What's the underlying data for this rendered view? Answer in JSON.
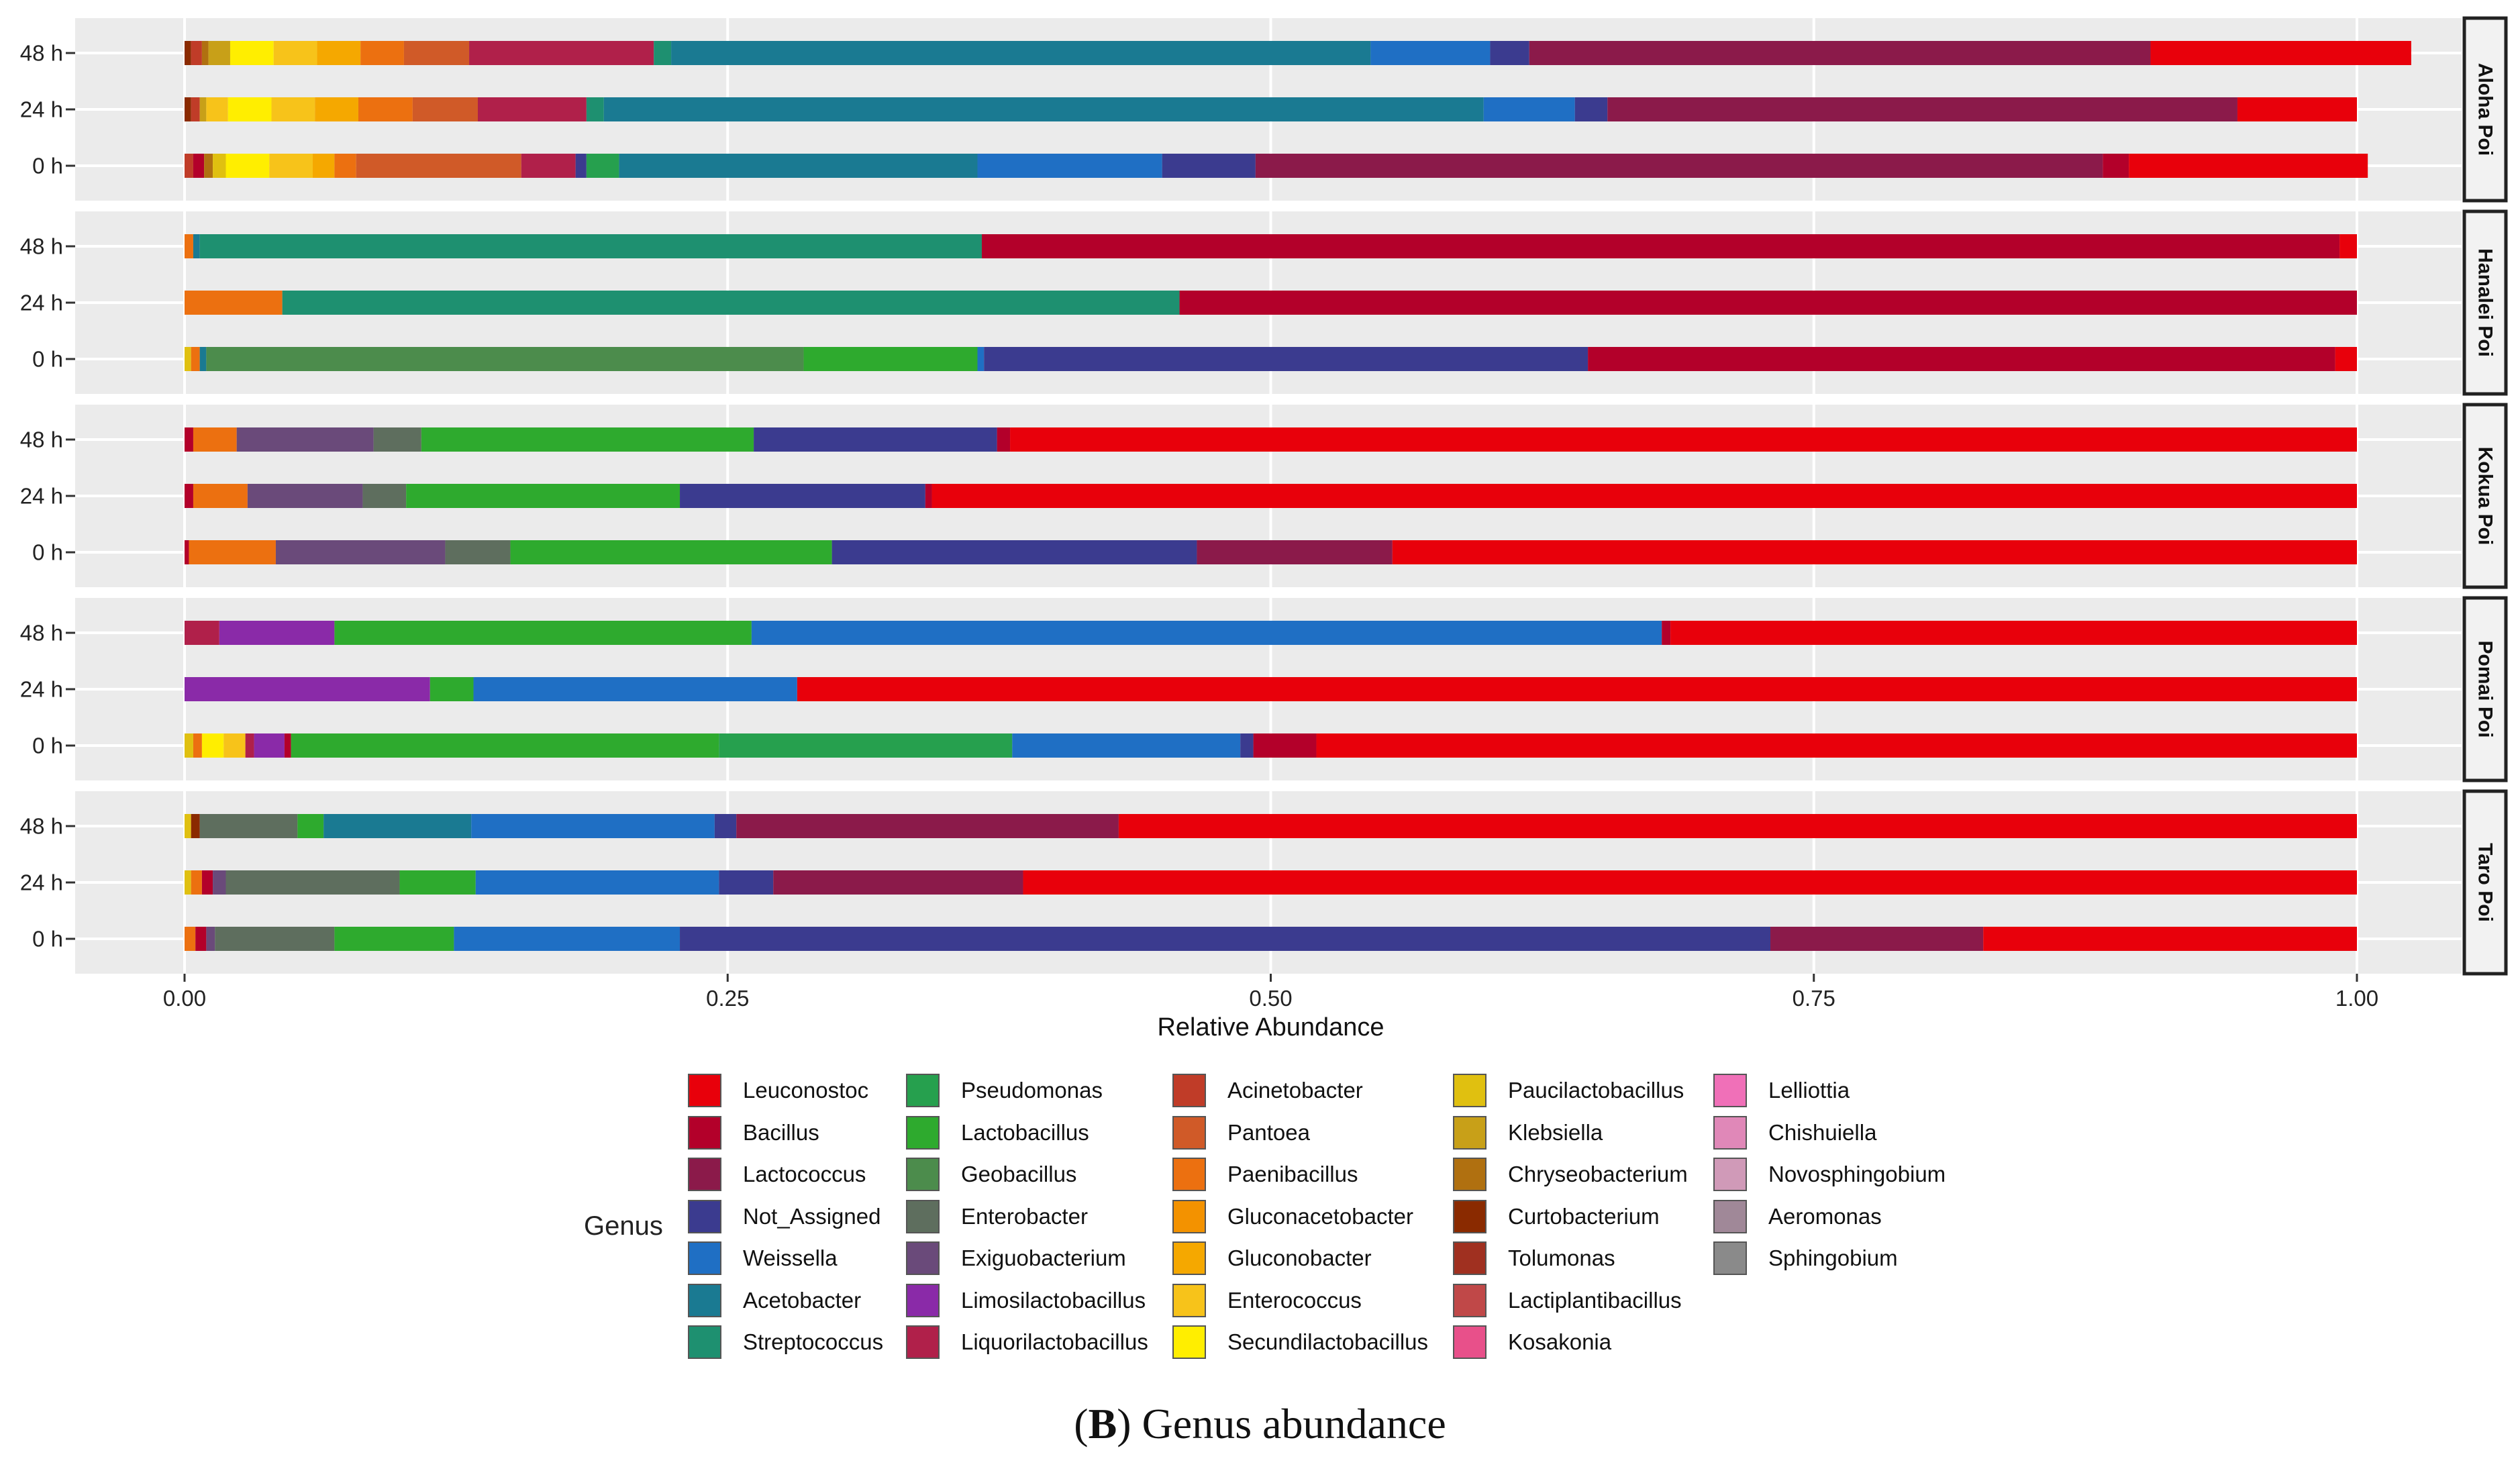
{
  "chart_data": {
    "type": "bar",
    "orientation": "horizontal",
    "stacked": true,
    "caption_label": "B",
    "caption_text": ") Genus abundance",
    "caption_open": "(",
    "xlabel": "Relative Abundance",
    "xlim": [
      0,
      1
    ],
    "xticks": [
      "0.00",
      "0.25",
      "0.50",
      "0.75",
      "1.00"
    ],
    "xtick_values": [
      0,
      0.25,
      0.5,
      0.75,
      1
    ],
    "legend_title": "Genus",
    "genus_colors": {
      "Leuconostoc": "#e8000b",
      "Bacillus": "#b3002a",
      "Lactococcus": "#8b1a4a",
      "Not_Assigned": "#3b3b8f",
      "Weissella": "#1f6fc4",
      "Acetobacter": "#1a7a92",
      "Streptococcus": "#1e9070",
      "Pseudomonas": "#26a04e",
      "Lactobacillus": "#2eaa2e",
      "Geobacillus": "#4c8c4c",
      "Enterobacter": "#5e6e5e",
      "Exiguobacterium": "#6a4a7a",
      "Limosilactobacillus": "#8a2aa8",
      "Liquorilactobacillus": "#b0204a",
      "Acinetobacter": "#c03c28",
      "Pantoea": "#d05a28",
      "Paenibacillus": "#ec7010",
      "Gluconacetobacter": "#f39200",
      "Gluconobacter": "#f5a800",
      "Enterococcus": "#f7c31a",
      "Secundilactobacillus": "#ffee00",
      "Paucilactobacillus": "#e0c010",
      "Klebsiella": "#c8a018",
      "Chryseobacterium": "#b07010",
      "Curtobacterium": "#8a2a00",
      "Tolumonas": "#a03020",
      "Lactiplantibacillus": "#c04848",
      "Kosakonia": "#e8508a",
      "Lelliottia": "#f070b8",
      "Chishuiella": "#e088b8",
      "Novosphingobium": "#d09ab8",
      "Aeromonas": "#a08898",
      "Sphingobium": "#8a8a8a"
    },
    "legend_columns": [
      [
        "Leuconostoc",
        "Bacillus",
        "Lactococcus",
        "Not_Assigned",
        "Weissella",
        "Acetobacter",
        "Streptococcus"
      ],
      [
        "Pseudomonas",
        "Lactobacillus",
        "Geobacillus",
        "Enterobacter",
        "Exiguobacterium",
        "Limosilactobacillus",
        "Liquorilactobacillus"
      ],
      [
        "Acinetobacter",
        "Pantoea",
        "Paenibacillus",
        "Gluconacetobacter",
        "Gluconobacter",
        "Enterococcus",
        "Secundilactobacillus"
      ],
      [
        "Paucilactobacillus",
        "Klebsiella",
        "Chryseobacterium",
        "Curtobacterium",
        "Tolumonas",
        "Lactiplantibacillus",
        "Kosakonia"
      ],
      [
        "Lelliottia",
        "Chishuiella",
        "Novosphingobium",
        "Aeromonas",
        "Sphingobium"
      ]
    ],
    "facets": [
      {
        "name": "Aloha Poi",
        "bars": [
          {
            "label": "48 h",
            "segments": [
              [
                "Curtobacterium",
                0.003
              ],
              [
                "Acinetobacter",
                0.005
              ],
              [
                "Chryseobacterium",
                0.003
              ],
              [
                "Klebsiella",
                0.01
              ],
              [
                "Secundilactobacillus",
                0.02
              ],
              [
                "Enterococcus",
                0.02
              ],
              [
                "Gluconobacter",
                0.02
              ],
              [
                "Paenibacillus",
                0.02
              ],
              [
                "Pantoea",
                0.03
              ],
              [
                "Liquorilactobacillus",
                0.085
              ],
              [
                "Streptococcus",
                0.008
              ],
              [
                "Acetobacter",
                0.322
              ],
              [
                "Weissella",
                0.055
              ],
              [
                "Not_Assigned",
                0.018
              ],
              [
                "Lactococcus",
                0.286
              ],
              [
                "Leuconostoc",
                0.12
              ]
            ]
          },
          {
            "label": "24 h",
            "segments": [
              [
                "Curtobacterium",
                0.003
              ],
              [
                "Acinetobacter",
                0.004
              ],
              [
                "Klebsiella",
                0.003
              ],
              [
                "Enterococcus",
                0.01
              ],
              [
                "Secundilactobacillus",
                0.02
              ],
              [
                "Enterococcus",
                0.02
              ],
              [
                "Gluconobacter",
                0.02
              ],
              [
                "Paenibacillus",
                0.025
              ],
              [
                "Pantoea",
                0.03
              ],
              [
                "Liquorilactobacillus",
                0.05
              ],
              [
                "Streptococcus",
                0.008
              ],
              [
                "Acetobacter",
                0.405
              ],
              [
                "Weissella",
                0.042
              ],
              [
                "Not_Assigned",
                0.015
              ],
              [
                "Lactococcus",
                0.29
              ],
              [
                "Leuconostoc",
                0.055
              ]
            ]
          },
          {
            "label": "0 h",
            "segments": [
              [
                "Acinetobacter",
                0.004
              ],
              [
                "Bacillus",
                0.005
              ],
              [
                "Chryseobacterium",
                0.004
              ],
              [
                "Paucilactobacillus",
                0.006
              ],
              [
                "Secundilactobacillus",
                0.02
              ],
              [
                "Enterococcus",
                0.02
              ],
              [
                "Gluconobacter",
                0.01
              ],
              [
                "Paenibacillus",
                0.01
              ],
              [
                "Pantoea",
                0.076
              ],
              [
                "Liquorilactobacillus",
                0.025
              ],
              [
                "Not_Assigned",
                0.005
              ],
              [
                "Pseudomonas",
                0.015
              ],
              [
                "Acetobacter",
                0.165
              ],
              [
                "Weissella",
                0.085
              ],
              [
                "Not_Assigned",
                0.043
              ],
              [
                "Lactococcus",
                0.39
              ],
              [
                "Bacillus",
                0.012
              ],
              [
                "Leuconostoc",
                0.11
              ]
            ]
          }
        ]
      },
      {
        "name": "Hanalei Poi",
        "bars": [
          {
            "label": "48 h",
            "segments": [
              [
                "Paenibacillus",
                0.004
              ],
              [
                "Acetobacter",
                0.003
              ],
              [
                "Streptococcus",
                0.36
              ],
              [
                "Bacillus",
                0.625
              ],
              [
                "Leuconostoc",
                0.008
              ]
            ]
          },
          {
            "label": "24 h",
            "segments": [
              [
                "Paenibacillus",
                0.045
              ],
              [
                "Streptococcus",
                0.413
              ],
              [
                "Bacillus",
                0.542
              ]
            ]
          },
          {
            "label": "0 h",
            "segments": [
              [
                "Paucilactobacillus",
                0.003
              ],
              [
                "Paenibacillus",
                0.004
              ],
              [
                "Acetobacter",
                0.003
              ],
              [
                "Geobacillus",
                0.275
              ],
              [
                "Lactobacillus",
                0.08
              ],
              [
                "Weissella",
                0.003
              ],
              [
                "Not_Assigned",
                0.278
              ],
              [
                "Bacillus",
                0.344
              ],
              [
                "Leuconostoc",
                0.01
              ]
            ]
          }
        ]
      },
      {
        "name": "Kokua Poi",
        "bars": [
          {
            "label": "48 h",
            "segments": [
              [
                "Bacillus",
                0.004
              ],
              [
                "Paenibacillus",
                0.02
              ],
              [
                "Exiguobacterium",
                0.063
              ],
              [
                "Enterobacter",
                0.022
              ],
              [
                "Lactobacillus",
                0.153
              ],
              [
                "Not_Assigned",
                0.112
              ],
              [
                "Bacillus",
                0.006
              ],
              [
                "Leuconostoc",
                0.62
              ]
            ]
          },
          {
            "label": "24 h",
            "segments": [
              [
                "Bacillus",
                0.004
              ],
              [
                "Paenibacillus",
                0.025
              ],
              [
                "Exiguobacterium",
                0.053
              ],
              [
                "Enterobacter",
                0.02
              ],
              [
                "Lactobacillus",
                0.126
              ],
              [
                "Not_Assigned",
                0.113
              ],
              [
                "Bacillus",
                0.003
              ],
              [
                "Leuconostoc",
                0.656
              ]
            ]
          },
          {
            "label": "0 h",
            "segments": [
              [
                "Bacillus",
                0.002
              ],
              [
                "Paenibacillus",
                0.04
              ],
              [
                "Exiguobacterium",
                0.078
              ],
              [
                "Enterobacter",
                0.03
              ],
              [
                "Lactobacillus",
                0.148
              ],
              [
                "Not_Assigned",
                0.168
              ],
              [
                "Lactococcus",
                0.09
              ],
              [
                "Leuconostoc",
                0.444
              ]
            ]
          }
        ]
      },
      {
        "name": "Pomai Poi",
        "bars": [
          {
            "label": "48 h",
            "segments": [
              [
                "Liquorilactobacillus",
                0.016
              ],
              [
                "Limosilactobacillus",
                0.053
              ],
              [
                "Lactobacillus",
                0.192
              ],
              [
                "Weissella",
                0.419
              ],
              [
                "Bacillus",
                0.004
              ],
              [
                "Leuconostoc",
                0.316
              ]
            ]
          },
          {
            "label": "24 h",
            "segments": [
              [
                "Limosilactobacillus",
                0.113
              ],
              [
                "Lactobacillus",
                0.02
              ],
              [
                "Weissella",
                0.149
              ],
              [
                "Leuconostoc",
                0.718
              ]
            ]
          },
          {
            "label": "0 h",
            "segments": [
              [
                "Paucilactobacillus",
                0.004
              ],
              [
                "Paenibacillus",
                0.004
              ],
              [
                "Secundilactobacillus",
                0.01
              ],
              [
                "Enterococcus",
                0.01
              ],
              [
                "Liquorilactobacillus",
                0.004
              ],
              [
                "Limosilactobacillus",
                0.014
              ],
              [
                "Bacillus",
                0.003
              ],
              [
                "Lactobacillus",
                0.197
              ],
              [
                "Pseudomonas",
                0.135
              ],
              [
                "Weissella",
                0.105
              ],
              [
                "Not_Assigned",
                0.006
              ],
              [
                "Bacillus",
                0.029
              ],
              [
                "Leuconostoc",
                0.479
              ]
            ]
          }
        ]
      },
      {
        "name": "Taro Poi",
        "bars": [
          {
            "label": "48 h",
            "segments": [
              [
                "Paucilactobacillus",
                0.003
              ],
              [
                "Curtobacterium",
                0.004
              ],
              [
                "Enterobacter",
                0.045
              ],
              [
                "Lactobacillus",
                0.012
              ],
              [
                "Acetobacter",
                0.068
              ],
              [
                "Weissella",
                0.112
              ],
              [
                "Not_Assigned",
                0.01
              ],
              [
                "Lactococcus",
                0.176
              ],
              [
                "Leuconostoc",
                0.57
              ]
            ]
          },
          {
            "label": "24 h",
            "segments": [
              [
                "Paucilactobacillus",
                0.003
              ],
              [
                "Paenibacillus",
                0.005
              ],
              [
                "Bacillus",
                0.005
              ],
              [
                "Exiguobacterium",
                0.006
              ],
              [
                "Enterobacter",
                0.08
              ],
              [
                "Lactobacillus",
                0.035
              ],
              [
                "Weissella",
                0.112
              ],
              [
                "Not_Assigned",
                0.025
              ],
              [
                "Lactococcus",
                0.115
              ],
              [
                "Leuconostoc",
                0.614
              ]
            ]
          },
          {
            "label": "0 h",
            "segments": [
              [
                "Paenibacillus",
                0.005
              ],
              [
                "Bacillus",
                0.005
              ],
              [
                "Exiguobacterium",
                0.004
              ],
              [
                "Enterobacter",
                0.055
              ],
              [
                "Lactobacillus",
                0.055
              ],
              [
                "Weissella",
                0.104
              ],
              [
                "Not_Assigned",
                0.502
              ],
              [
                "Lactococcus",
                0.098
              ],
              [
                "Leuconostoc",
                0.172
              ]
            ]
          }
        ]
      }
    ]
  }
}
